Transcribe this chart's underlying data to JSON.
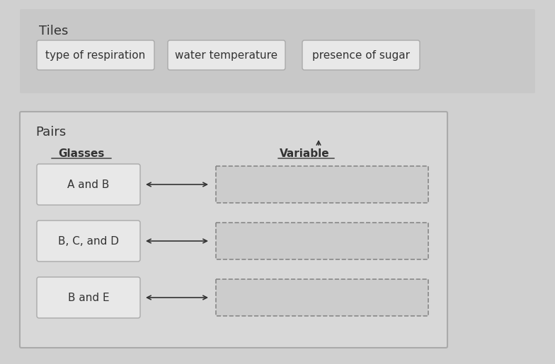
{
  "bg_color": "#d0d0d0",
  "tiles_section": {
    "label": "Tiles",
    "label_fontsize": 13,
    "bg": "#c8c8c8",
    "tiles": [
      "type of respiration",
      "water temperature",
      "presence of sugar"
    ],
    "tile_bg": "#e8e8e8",
    "tile_border": "#aaaaaa",
    "tile_fontsize": 11
  },
  "pairs_section": {
    "label": "Pairs",
    "label_fontsize": 13,
    "bg": "#e0e0e0",
    "border": "#aaaaaa",
    "col1_header": "Glasses",
    "col2_header": "Variable",
    "header_fontsize": 11,
    "rows": [
      "A and B",
      "B, C, and D",
      "B and E"
    ],
    "row_fontsize": 11,
    "row_bg": "#e8e8e8",
    "row_border": "#aaaaaa",
    "dropzone_border": "#888888"
  }
}
